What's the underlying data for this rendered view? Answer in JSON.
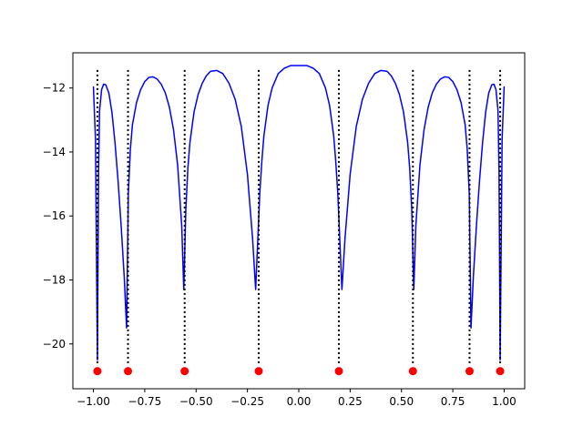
{
  "chart_data": {
    "type": "line",
    "title": "",
    "xlabel": "",
    "ylabel": "",
    "xlim": [
      -1.1,
      1.1
    ],
    "ylim": [
      -21.4,
      -10.9
    ],
    "x_ticks": [
      -1.0,
      -0.75,
      -0.5,
      -0.25,
      0.0,
      0.25,
      0.5,
      0.75,
      1.0
    ],
    "x_tick_labels": [
      "−1.00",
      "−0.75",
      "−0.50",
      "−0.25",
      "0.00",
      "0.25",
      "0.50",
      "0.75",
      "1.00"
    ],
    "y_ticks": [
      -20,
      -18,
      -16,
      -14,
      -12
    ],
    "y_tick_labels": [
      "−20",
      "−18",
      "−16",
      "−14",
      "−12"
    ],
    "grid": false,
    "series": [
      {
        "style": "solid-line",
        "color": "#0000ff",
        "x": [
          -1.0,
          -0.99,
          -0.9805,
          -0.975,
          -0.97,
          -0.96,
          -0.95,
          -0.94,
          -0.925,
          -0.91,
          -0.895,
          -0.88,
          -0.865,
          -0.85,
          -0.8385,
          -0.83,
          -0.82,
          -0.81,
          -0.79,
          -0.77,
          -0.75,
          -0.73,
          -0.71,
          -0.69,
          -0.67,
          -0.65,
          -0.63,
          -0.61,
          -0.59,
          -0.57,
          -0.56,
          -0.55,
          -0.54,
          -0.53,
          -0.51,
          -0.49,
          -0.47,
          -0.45,
          -0.43,
          -0.4,
          -0.37,
          -0.34,
          -0.31,
          -0.28,
          -0.25,
          -0.225,
          -0.21,
          -0.2,
          -0.19,
          -0.18,
          -0.17,
          -0.15,
          -0.13,
          -0.1,
          -0.07,
          -0.04,
          0.0,
          0.04,
          0.07,
          0.1,
          0.13,
          0.15,
          0.17,
          0.18,
          0.19,
          0.2,
          0.21,
          0.225,
          0.25,
          0.28,
          0.31,
          0.34,
          0.37,
          0.4,
          0.43,
          0.45,
          0.47,
          0.49,
          0.51,
          0.53,
          0.54,
          0.55,
          0.56,
          0.57,
          0.59,
          0.61,
          0.63,
          0.65,
          0.67,
          0.69,
          0.71,
          0.73,
          0.75,
          0.77,
          0.79,
          0.81,
          0.82,
          0.83,
          0.8385,
          0.85,
          0.865,
          0.88,
          0.895,
          0.91,
          0.925,
          0.94,
          0.95,
          0.96,
          0.97,
          0.975,
          0.9805,
          0.99,
          1.0
        ],
        "y": [
          -11.95,
          -13.6,
          -20.5,
          -14.6,
          -12.7,
          -12.05,
          -11.88,
          -11.9,
          -12.15,
          -12.75,
          -13.7,
          -14.9,
          -16.3,
          -17.9,
          -19.5,
          -15.3,
          -13.9,
          -13.15,
          -12.45,
          -12.05,
          -11.8,
          -11.67,
          -11.65,
          -11.72,
          -11.88,
          -12.15,
          -12.6,
          -13.3,
          -14.4,
          -16.3,
          -18.3,
          -15.8,
          -14.5,
          -13.7,
          -12.75,
          -12.2,
          -11.85,
          -11.62,
          -11.48,
          -11.45,
          -11.55,
          -11.85,
          -12.35,
          -13.2,
          -14.7,
          -16.7,
          -18.3,
          -16.8,
          -15.3,
          -14.3,
          -13.5,
          -12.55,
          -12.0,
          -11.55,
          -11.38,
          -11.3,
          -11.3,
          -11.3,
          -11.38,
          -11.55,
          -12.0,
          -12.55,
          -13.5,
          -14.3,
          -15.3,
          -16.8,
          -18.3,
          -16.7,
          -14.7,
          -13.2,
          -12.35,
          -11.85,
          -11.55,
          -11.45,
          -11.48,
          -11.62,
          -11.85,
          -12.2,
          -12.75,
          -13.7,
          -14.5,
          -15.8,
          -18.3,
          -16.3,
          -14.4,
          -13.3,
          -12.6,
          -12.15,
          -11.88,
          -11.72,
          -11.65,
          -11.67,
          -11.8,
          -12.05,
          -12.45,
          -13.15,
          -13.9,
          -15.3,
          -19.5,
          -17.9,
          -16.3,
          -14.9,
          -13.7,
          -12.75,
          -12.15,
          -11.9,
          -11.88,
          -12.05,
          -12.7,
          -14.6,
          -20.5,
          -13.6,
          -11.95
        ]
      },
      {
        "style": "dotted-vertical-lines",
        "color": "#000000",
        "x": [
          -0.9805,
          -0.8315,
          -0.5557,
          -0.1951,
          0.1951,
          0.5557,
          0.8315,
          0.9805
        ],
        "y_range": [
          -20.6,
          -11.4
        ]
      },
      {
        "style": "markers",
        "color": "#ff0000",
        "x": [
          -0.9805,
          -0.8315,
          -0.5557,
          -0.1951,
          0.1951,
          0.5557,
          0.8315,
          0.9805
        ],
        "y": [
          -20.85,
          -20.85,
          -20.85,
          -20.85,
          -20.85,
          -20.85,
          -20.85,
          -20.85
        ]
      }
    ]
  }
}
